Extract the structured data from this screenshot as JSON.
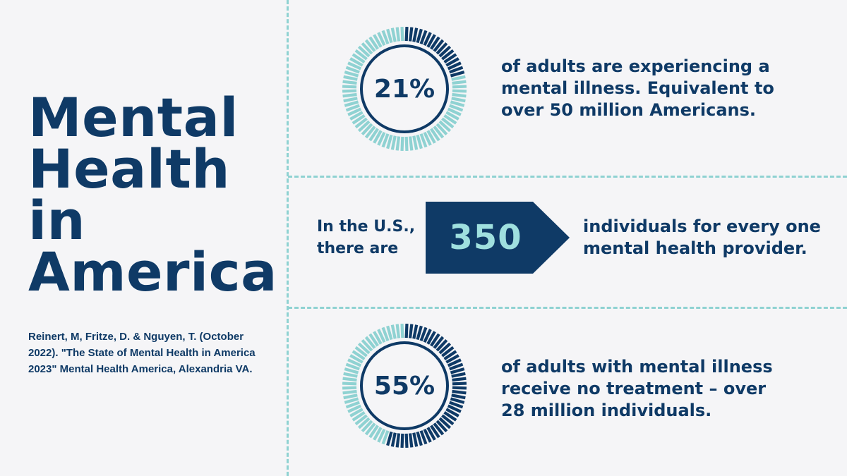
{
  "title_lines": [
    "Mental",
    "Health",
    "in",
    "America"
  ],
  "citation": "Reinert, M, Fritze, D. & Nguyen, T. (October 2022). \"The State of Mental Health in America 2023\" Mental Health America, Alexandria VA.",
  "colors": {
    "navy": "#0f3a66",
    "teal": "#8fd2d2",
    "background": "#f5f5f7"
  },
  "stats": [
    {
      "percent_label": "21%",
      "value": 21,
      "text_lines": [
        "of adults are experiencing a",
        "mental illness. Equivalent to",
        "over 50 million Americans."
      ]
    },
    {
      "percent_label": "55%",
      "value": 55,
      "text_lines": [
        "of adults with mental illness",
        "receive no treatment – over",
        "28 million individuals."
      ]
    }
  ],
  "provider": {
    "pre_lines": [
      "In the U.S.,",
      "there are"
    ],
    "number": "350",
    "post_lines": [
      "individuals for every one",
      "mental health provider."
    ]
  }
}
